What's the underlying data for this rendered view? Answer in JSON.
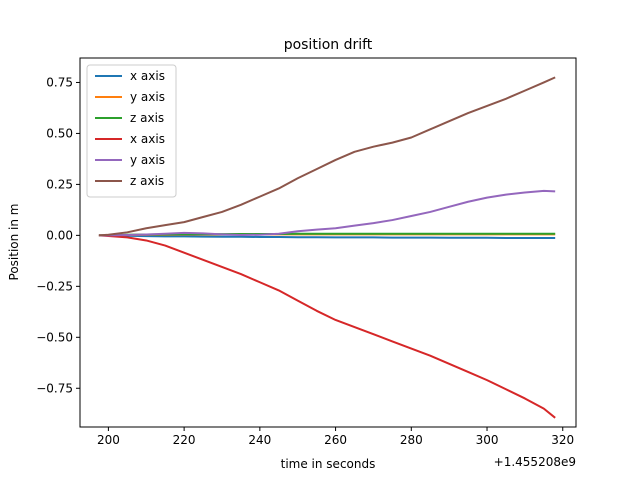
{
  "chart_data": {
    "type": "line",
    "title": "position drift",
    "xlabel": "time in seconds",
    "ylabel": "Position in m",
    "x_offset_label": "+1.455208e9",
    "xlim": [
      192.5,
      323.5
    ],
    "ylim": [
      -0.94,
      0.87
    ],
    "xticks": [
      200,
      220,
      240,
      260,
      280,
      300,
      320
    ],
    "yticks": [
      -0.75,
      -0.5,
      -0.25,
      0.0,
      0.25,
      0.5,
      0.75
    ],
    "xtick_labels": [
      "200",
      "220",
      "240",
      "260",
      "280",
      "300",
      "320"
    ],
    "ytick_labels": [
      "−0.75",
      "−0.50",
      "−0.25",
      "0.00",
      "0.25",
      "0.50",
      "0.75"
    ],
    "grid": false,
    "legend_position": "top-left",
    "x": [
      197.5,
      200,
      205,
      210,
      215,
      220,
      225,
      230,
      235,
      240,
      245,
      250,
      255,
      260,
      265,
      270,
      275,
      280,
      285,
      290,
      295,
      300,
      305,
      310,
      315,
      318
    ],
    "series": [
      {
        "name": "x axis",
        "color": "#1f77b4",
        "values": [
          0,
          0,
          -0.002,
          -0.004,
          -0.005,
          -0.005,
          -0.006,
          -0.007,
          -0.007,
          -0.008,
          -0.008,
          -0.009,
          -0.009,
          -0.01,
          -0.01,
          -0.01,
          -0.011,
          -0.011,
          -0.011,
          -0.012,
          -0.012,
          -0.012,
          -0.013,
          -0.013,
          -0.013,
          -0.013
        ]
      },
      {
        "name": "y axis",
        "color": "#ff7f0e",
        "values": [
          0,
          0,
          0.002,
          0.003,
          0.003,
          0.004,
          0.004,
          0.004,
          0.005,
          0.005,
          0.005,
          0.005,
          0.005,
          0.005,
          0.005,
          0.005,
          0.005,
          0.005,
          0.005,
          0.005,
          0.005,
          0.005,
          0.005,
          0.005,
          0.005,
          0.005
        ]
      },
      {
        "name": "z axis",
        "color": "#2ca02c",
        "values": [
          0,
          0,
          0.003,
          0.004,
          0.005,
          0.006,
          0.006,
          0.006,
          0.007,
          0.007,
          0.007,
          0.008,
          0.008,
          0.008,
          0.008,
          0.008,
          0.008,
          0.008,
          0.008,
          0.008,
          0.008,
          0.008,
          0.008,
          0.008,
          0.008,
          0.008
        ]
      },
      {
        "name": "x axis",
        "color": "#d62728",
        "values": [
          0,
          -0.003,
          -0.01,
          -0.025,
          -0.05,
          -0.085,
          -0.12,
          -0.155,
          -0.19,
          -0.23,
          -0.27,
          -0.32,
          -0.37,
          -0.415,
          -0.45,
          -0.485,
          -0.52,
          -0.555,
          -0.59,
          -0.63,
          -0.67,
          -0.71,
          -0.755,
          -0.8,
          -0.85,
          -0.895
        ]
      },
      {
        "name": "y axis",
        "color": "#9467bd",
        "values": [
          0,
          0,
          0.002,
          0.004,
          0.008,
          0.012,
          0.01,
          0.005,
          0.002,
          0.003,
          0.008,
          0.02,
          0.028,
          0.035,
          0.048,
          0.06,
          0.075,
          0.095,
          0.115,
          0.14,
          0.165,
          0.185,
          0.2,
          0.21,
          0.218,
          0.216
        ]
      },
      {
        "name": "z axis",
        "color": "#8c564b",
        "values": [
          0,
          0.003,
          0.015,
          0.035,
          0.05,
          0.065,
          0.09,
          0.115,
          0.15,
          0.19,
          0.23,
          0.28,
          0.325,
          0.37,
          0.41,
          0.435,
          0.455,
          0.48,
          0.52,
          0.56,
          0.6,
          0.635,
          0.67,
          0.71,
          0.75,
          0.775
        ]
      }
    ]
  }
}
